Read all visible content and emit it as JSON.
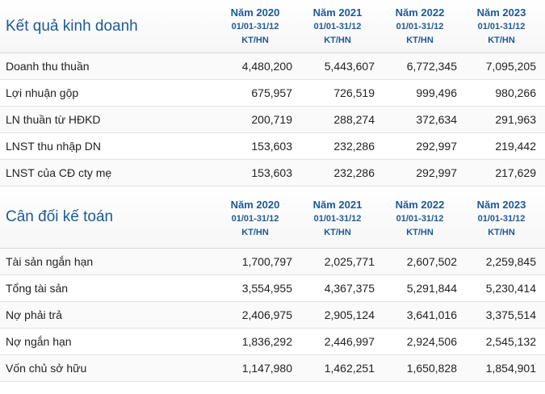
{
  "sections": [
    {
      "title": "Kết quả kinh doanh",
      "columns": [
        {
          "year": "Năm 2020",
          "range": "01/01-31/12",
          "unit": "KT/HN"
        },
        {
          "year": "Năm 2021",
          "range": "01/01-31/12",
          "unit": "KT/HN"
        },
        {
          "year": "Năm 2022",
          "range": "01/01-31/12",
          "unit": "KT/HN"
        },
        {
          "year": "Năm 2023",
          "range": "01/01-31/12",
          "unit": "KT/HN"
        }
      ],
      "rows": [
        {
          "label": "Doanh thu thuần",
          "values": [
            "4,480,200",
            "5,443,607",
            "6,772,345",
            "7,095,205"
          ]
        },
        {
          "label": "Lợi nhuận gộp",
          "values": [
            "675,957",
            "726,519",
            "999,496",
            "980,266"
          ]
        },
        {
          "label": "LN thuần từ HĐKD",
          "values": [
            "200,719",
            "288,274",
            "372,634",
            "291,963"
          ]
        },
        {
          "label": "LNST thu nhập DN",
          "values": [
            "153,603",
            "232,286",
            "292,997",
            "219,442"
          ]
        },
        {
          "label": "LNST của CĐ cty mẹ",
          "values": [
            "153,603",
            "232,286",
            "292,997",
            "217,629"
          ]
        }
      ]
    },
    {
      "title": "Cân đối kế toán",
      "columns": [
        {
          "year": "Năm 2020",
          "range": "01/01-31/12",
          "unit": "KT/HN"
        },
        {
          "year": "Năm 2021",
          "range": "01/01-31/12",
          "unit": "KT/HN"
        },
        {
          "year": "Năm 2022",
          "range": "01/01-31/12",
          "unit": "KT/HN"
        },
        {
          "year": "Năm 2023",
          "range": "01/01-31/12",
          "unit": "KT/HN"
        }
      ],
      "rows": [
        {
          "label": "Tài sản ngắn hạn",
          "values": [
            "1,700,797",
            "2,025,771",
            "2,607,502",
            "2,259,845"
          ]
        },
        {
          "label": "Tổng tài sản",
          "values": [
            "3,554,955",
            "4,367,375",
            "5,291,844",
            "5,230,414"
          ]
        },
        {
          "label": "Nợ phải trả",
          "values": [
            "2,406,975",
            "2,905,124",
            "3,641,016",
            "3,375,514"
          ]
        },
        {
          "label": "Nợ ngắn hạn",
          "values": [
            "1,836,292",
            "2,446,997",
            "2,924,506",
            "2,545,132"
          ]
        },
        {
          "label": "Vốn chủ sở hữu",
          "values": [
            "1,147,980",
            "1,462,251",
            "1,650,828",
            "1,854,901"
          ]
        }
      ]
    }
  ]
}
